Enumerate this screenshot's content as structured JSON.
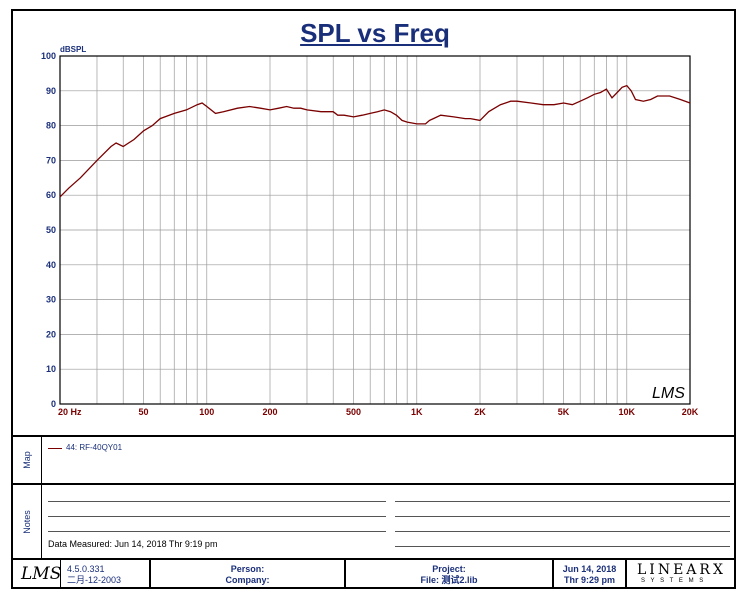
{
  "title": "SPL vs Freq",
  "chart_data": {
    "type": "line",
    "ylabel": "dBSPL",
    "ylim": [
      0,
      100
    ],
    "xlim": [
      20,
      20000
    ],
    "x_scale": "log",
    "grid": true,
    "y_ticks": [
      0,
      10,
      20,
      30,
      40,
      50,
      60,
      70,
      80,
      90,
      100
    ],
    "x_ticks": [
      {
        "value": 20,
        "label": "20  Hz"
      },
      {
        "value": 50,
        "label": "50"
      },
      {
        "value": 100,
        "label": "100"
      },
      {
        "value": 200,
        "label": "200"
      },
      {
        "value": 500,
        "label": "500"
      },
      {
        "value": 1000,
        "label": "1K"
      },
      {
        "value": 2000,
        "label": "2K"
      },
      {
        "value": 5000,
        "label": "5K"
      },
      {
        "value": 10000,
        "label": "10K"
      },
      {
        "value": 20000,
        "label": "20K"
      }
    ],
    "series": [
      {
        "name": "44: RF-40QY01",
        "color": "#7a0000",
        "x": [
          20,
          22,
          25,
          30,
          35,
          37,
          40,
          45,
          50,
          55,
          60,
          70,
          80,
          90,
          95,
          100,
          110,
          120,
          140,
          160,
          180,
          200,
          220,
          240,
          260,
          280,
          300,
          350,
          400,
          420,
          450,
          500,
          550,
          600,
          650,
          700,
          750,
          800,
          850,
          900,
          1000,
          1100,
          1150,
          1200,
          1300,
          1500,
          1700,
          1800,
          2000,
          2200,
          2500,
          2800,
          3000,
          3500,
          4000,
          4500,
          5000,
          5500,
          6000,
          6500,
          7000,
          7500,
          8000,
          8500,
          9000,
          9500,
          10000,
          10500,
          11000,
          12000,
          13000,
          14000,
          16000,
          18000,
          20000
        ],
        "y": [
          59.5,
          62,
          65,
          70,
          74,
          75,
          74,
          76,
          78.5,
          80,
          82,
          83.5,
          84.5,
          86,
          86.5,
          85.5,
          83.5,
          84,
          85,
          85.5,
          85,
          84.5,
          85,
          85.5,
          85,
          85,
          84.5,
          84,
          84,
          83,
          83,
          82.5,
          83,
          83.5,
          84,
          84.5,
          84,
          83,
          81.5,
          81,
          80.5,
          80.5,
          81.5,
          82,
          83,
          82.5,
          82,
          82,
          81.5,
          84,
          86,
          87,
          87,
          86.5,
          86,
          86,
          86.5,
          86,
          87,
          88,
          89,
          89.5,
          90.5,
          88,
          89.5,
          91,
          91.5,
          90,
          87.5,
          87,
          87.5,
          88.5,
          88.5,
          87.5,
          86.5
        ]
      }
    ]
  },
  "watermark": "LMS",
  "map_label": "Map",
  "notes_label": "Notes",
  "data_measured": "Data Measured: Jun 14, 2018  Thr  9:19 pm",
  "footer": {
    "version": "4.5.0.331",
    "date_code": "二月-12-2003",
    "person": "Person:",
    "company": "Company:",
    "project": "Project:",
    "file": "File: 测试2.lib",
    "date": "Jun 14, 2018",
    "time": "Thr  9:29 pm",
    "brand_main": "LINEARX",
    "brand_sub": "S Y S T E M S"
  }
}
